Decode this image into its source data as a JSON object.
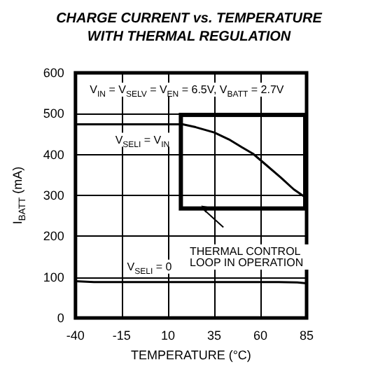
{
  "chart_data": {
    "type": "line",
    "title": "CHARGE CURRENT vs. TEMPERATURE\nWITH THERMAL REGULATION",
    "xlabel": "TEMPERATURE (°C)",
    "ylabel": "I$_{BATT}$ (mA)",
    "annotations": [
      "V$_{IN}$ = V$_{SELV}$ = V$_{EN}$ = 6.5V, V$_{BATT}$ = 2.7V",
      "THERMAL CONTROL LOOP IN OPERATION"
    ],
    "series": [
      {
        "name": "V$_{SELI}$ = V$_{IN}$",
        "color": "#000000",
        "x": [
          -40,
          -20,
          0,
          10,
          18,
          25,
          35,
          43,
          50,
          56,
          63,
          71,
          78,
          85
        ],
        "values": [
          474,
          474,
          474,
          474,
          474,
          467,
          454,
          437,
          418,
          402,
          375,
          344,
          315,
          293
        ]
      },
      {
        "name": "V$_{SELI}$ = 0",
        "color": "#000000",
        "x": [
          -40,
          -30,
          0,
          35,
          70,
          80,
          85
        ],
        "values": [
          90,
          88,
          88,
          88,
          88,
          87,
          85
        ]
      }
    ],
    "xlim": [
      -40,
      85
    ],
    "xticks": [
      -40,
      -15,
      10,
      35,
      60,
      85
    ],
    "ylim": [
      0,
      600
    ],
    "yticks": [
      0,
      100,
      200,
      300,
      400,
      500,
      600
    ],
    "grid": true,
    "legend": false,
    "marker": "none",
    "line_style": "solid"
  }
}
